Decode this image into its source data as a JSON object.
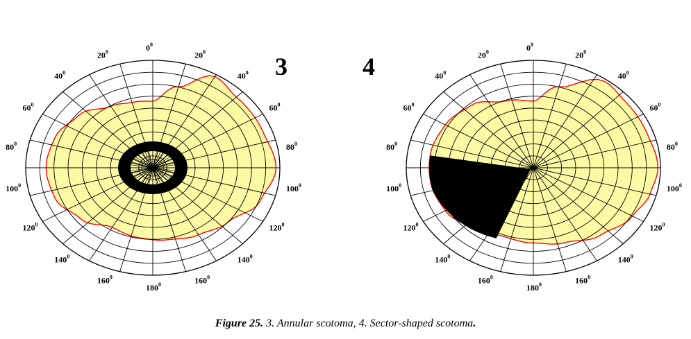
{
  "figure": {
    "caption_label": "Figure 25",
    "caption_text": "3. Annular scotoma, 4. Sector-shaped scotoma",
    "caption_end": "."
  },
  "colors": {
    "field_fill": "#fdfaa6",
    "field_border": "#ff0000",
    "grid": "#000000",
    "scotoma": "#000000"
  },
  "panels": [
    {
      "number": "3",
      "title": "Annular scotoma",
      "angle_labels": [
        {
          "value": "0",
          "degree": "0"
        },
        {
          "value": "20",
          "degree": "0"
        },
        {
          "value": "20",
          "degree": "0"
        },
        {
          "value": "40",
          "degree": "0"
        },
        {
          "value": "40",
          "degree": "0"
        },
        {
          "value": "60",
          "degree": "0"
        },
        {
          "value": "60",
          "degree": "0"
        },
        {
          "value": "80",
          "degree": "0"
        },
        {
          "value": "80",
          "degree": "0"
        },
        {
          "value": "100",
          "degree": "0"
        },
        {
          "value": "100",
          "degree": "0"
        },
        {
          "value": "120",
          "degree": "0"
        },
        {
          "value": "120",
          "degree": "0"
        },
        {
          "value": "140",
          "degree": "0"
        },
        {
          "value": "140",
          "degree": "0"
        },
        {
          "value": "160",
          "degree": "0"
        },
        {
          "value": "160",
          "degree": "0"
        },
        {
          "value": "180",
          "degree": "0"
        }
      ]
    },
    {
      "number": "4",
      "title": "Sector-shaped scotoma",
      "angle_labels": [
        {
          "value": "0",
          "degree": "0"
        },
        {
          "value": "20",
          "degree": "0"
        },
        {
          "value": "20",
          "degree": "0"
        },
        {
          "value": "40",
          "degree": "0"
        },
        {
          "value": "40",
          "degree": "0"
        },
        {
          "value": "60",
          "degree": "0"
        },
        {
          "value": "60",
          "degree": "0"
        },
        {
          "value": "80",
          "degree": "0"
        },
        {
          "value": "80",
          "degree": "0"
        },
        {
          "value": "100",
          "degree": "0"
        },
        {
          "value": "100",
          "degree": "0"
        },
        {
          "value": "120",
          "degree": "0"
        },
        {
          "value": "120",
          "degree": "0"
        },
        {
          "value": "140",
          "degree": "0"
        },
        {
          "value": "140",
          "degree": "0"
        },
        {
          "value": "160",
          "degree": "0"
        },
        {
          "value": "160",
          "degree": "0"
        },
        {
          "value": "180",
          "degree": "0"
        }
      ]
    }
  ]
}
